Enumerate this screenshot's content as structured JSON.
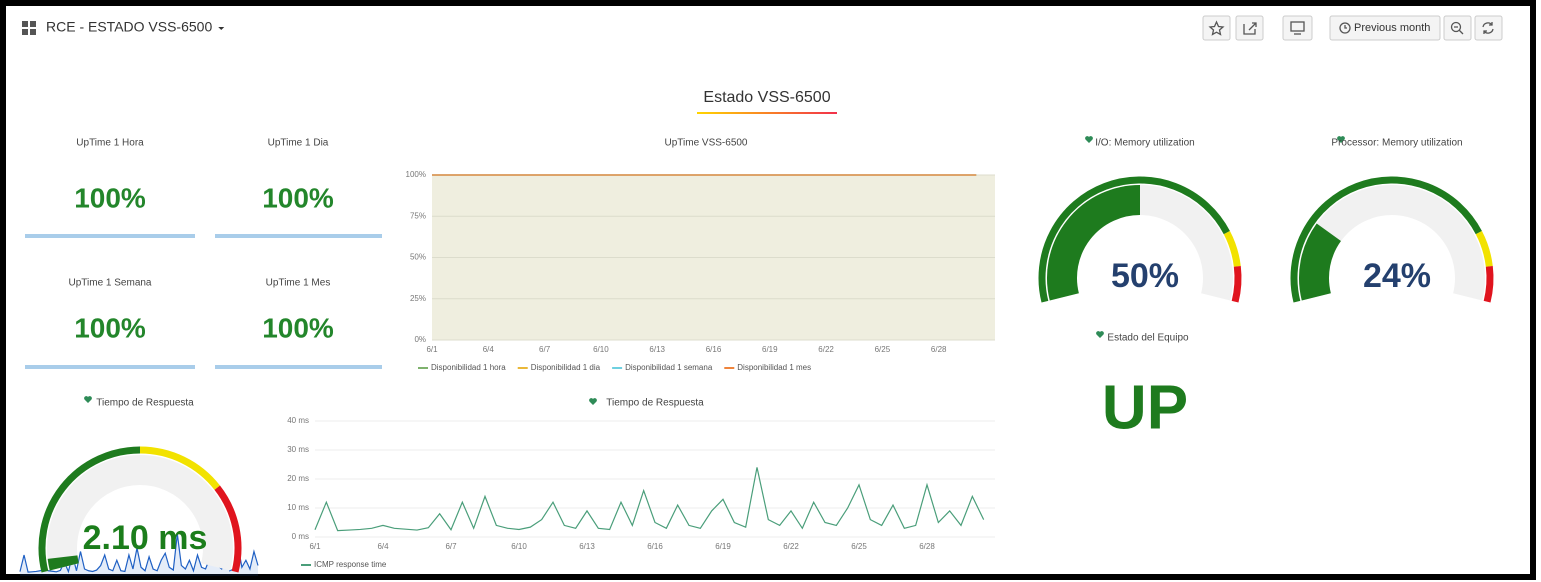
{
  "header": {
    "title": "RCE - ESTADO VSS-6500",
    "time_range": "Previous month"
  },
  "text_panel": {
    "title": "Estado VSS-6500"
  },
  "stats": [
    {
      "title": "UpTime 1 Hora",
      "value": "100%"
    },
    {
      "title": "UpTime 1 Dia",
      "value": "100%"
    },
    {
      "title": "UpTime 1 Semana",
      "value": "100%"
    },
    {
      "title": "UpTime 1 Mes",
      "value": "100%"
    }
  ],
  "gauges": [
    {
      "title": "I/O: Memory utilization",
      "value": 50,
      "value_label": "50%",
      "min": 0,
      "max": 100,
      "thresholds": [
        {
          "value": 0,
          "color": "#1e7b1e"
        },
        {
          "value": 80,
          "color": "#f2e200"
        },
        {
          "value": 90,
          "color": "#e0141e"
        }
      ]
    },
    {
      "title": "Processor: Memory utilization",
      "value": 24,
      "value_label": "24%",
      "min": 0,
      "max": 100,
      "thresholds": [
        {
          "value": 0,
          "color": "#1e7b1e"
        },
        {
          "value": 80,
          "color": "#f2e200"
        },
        {
          "value": 90,
          "color": "#e0141e"
        }
      ]
    }
  ],
  "response_gauge": {
    "title": "Tiempo de Respuesta",
    "value": 2.1,
    "value_label": "2.10 ms",
    "min": 0,
    "max": 60,
    "thresholds": [
      {
        "value": 0,
        "color": "#1e7b1e"
      },
      {
        "value": 30,
        "color": "#f2e200"
      },
      {
        "value": 45,
        "color": "#e0141e"
      }
    ]
  },
  "status": {
    "title": "Estado del Equipo",
    "value": "UP"
  },
  "chart_data": [
    {
      "type": "line",
      "title": "UpTime VSS-6500",
      "categories": [
        "6/1",
        null,
        null,
        "6/4",
        null,
        null,
        "6/7",
        null,
        null,
        "6/10",
        null,
        null,
        "6/13",
        null,
        null,
        "6/16",
        null,
        null,
        "6/19",
        null,
        null,
        "6/22",
        null,
        null,
        "6/25",
        null,
        null,
        "6/28",
        null,
        null
      ],
      "series": [
        {
          "name": "Disponibilidad 1 hora",
          "color": "#7eb26d",
          "values": [
            100,
            100,
            100,
            100,
            100,
            100,
            100,
            100,
            100,
            100,
            100,
            100,
            100,
            100,
            100,
            100,
            100,
            100,
            100,
            100,
            100,
            100,
            100,
            100,
            100,
            100,
            100,
            100,
            100,
            100
          ]
        },
        {
          "name": "Disponibilidad 1 dia",
          "color": "#eab839",
          "values": [
            100,
            100,
            100,
            100,
            100,
            100,
            100,
            100,
            100,
            100,
            100,
            100,
            100,
            100,
            100,
            100,
            100,
            100,
            100,
            100,
            100,
            100,
            100,
            100,
            100,
            100,
            100,
            100,
            100,
            100
          ]
        },
        {
          "name": "Disponibilidad 1 semana",
          "color": "#6ed0e0",
          "values": [
            100,
            100,
            100,
            100,
            100,
            100,
            100,
            100,
            100,
            100,
            100,
            100,
            100,
            100,
            100,
            100,
            100,
            100,
            100,
            100,
            100,
            100,
            100,
            100,
            100,
            100,
            100,
            100,
            100,
            100
          ]
        },
        {
          "name": "Disponibilidad 1 mes",
          "color": "#ef843c",
          "values": [
            100,
            100,
            100,
            100,
            100,
            100,
            100,
            100,
            100,
            100,
            100,
            100,
            100,
            100,
            100,
            100,
            100,
            100,
            100,
            100,
            100,
            100,
            100,
            100,
            100,
            100,
            100,
            100,
            100,
            100
          ]
        }
      ],
      "ylim": [
        0,
        100
      ],
      "yticks": [
        {
          "value": 0,
          "label": "0%"
        },
        {
          "value": 25,
          "label": "25%"
        },
        {
          "value": 50,
          "label": "50%"
        },
        {
          "value": 75,
          "label": "75%"
        },
        {
          "value": 100,
          "label": "100%"
        }
      ],
      "grid": true
    },
    {
      "type": "line",
      "title": "Tiempo de Respuesta",
      "categories": [
        "6/1",
        null,
        null,
        null,
        null,
        null,
        "6/4",
        null,
        null,
        null,
        null,
        null,
        "6/7",
        null,
        null,
        null,
        null,
        null,
        "6/10",
        null,
        null,
        null,
        null,
        null,
        "6/13",
        null,
        null,
        null,
        null,
        null,
        "6/16",
        null,
        null,
        null,
        null,
        null,
        "6/19",
        null,
        null,
        null,
        null,
        null,
        "6/22",
        null,
        null,
        null,
        null,
        null,
        "6/25",
        null,
        null,
        null,
        null,
        null,
        "6/28",
        null,
        null,
        null,
        null,
        null
      ],
      "series": [
        {
          "name": "ICMP response time",
          "color": "#4a9e7a",
          "values": [
            2.5,
            12,
            2.2,
            2.4,
            2.6,
            3,
            4,
            3,
            2.7,
            2.4,
            3.2,
            8,
            2.5,
            12,
            3,
            14,
            4,
            3,
            2.6,
            3.4,
            6,
            12,
            4,
            3,
            9,
            3,
            2.6,
            12,
            4,
            16,
            5,
            3,
            11,
            4,
            3,
            9,
            13,
            5,
            3.4,
            24,
            6,
            4,
            9,
            3,
            12,
            5,
            4,
            10,
            18,
            6,
            4,
            11,
            3,
            4,
            18,
            5,
            9,
            4,
            14,
            6
          ]
        }
      ],
      "ylim": [
        0,
        40
      ],
      "yticks": [
        {
          "value": 0,
          "label": "0 ms"
        },
        {
          "value": 10,
          "label": "10 ms"
        },
        {
          "value": 20,
          "label": "20 ms"
        },
        {
          "value": 30,
          "label": "30 ms"
        },
        {
          "value": 40,
          "label": "40 ms"
        }
      ],
      "grid": true
    }
  ]
}
